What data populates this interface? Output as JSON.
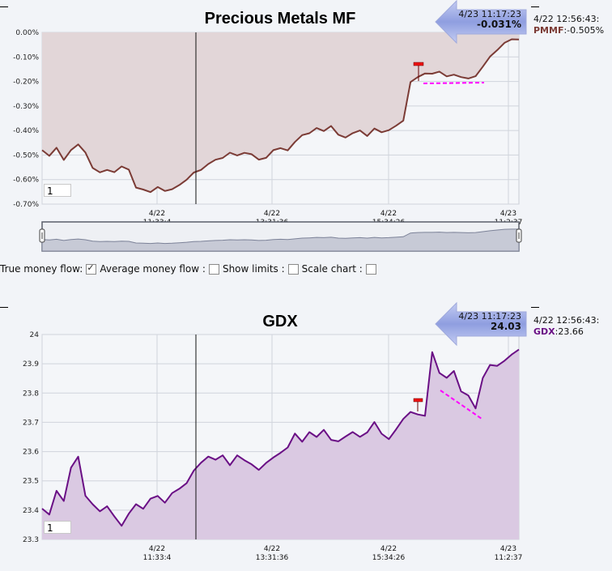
{
  "chart_data": [
    {
      "type": "area",
      "title": "Precious Metals MF",
      "ylim": [
        -0.7,
        0.0
      ],
      "y_ticks": [
        "0.00%",
        "-0.10%",
        "-0.20%",
        "-0.30%",
        "-0.40%",
        "-0.50%",
        "-0.60%",
        "-0.70%"
      ],
      "x_ticks": [
        {
          "date": "4/22",
          "time": "11:33:4"
        },
        {
          "date": "4/22",
          "time": "13:31:36"
        },
        {
          "date": "4/22",
          "time": "15:34:26"
        },
        {
          "date": "4/23",
          "time": "11:2:37"
        }
      ],
      "series": [
        {
          "line_color": "#7b3b35",
          "fill_color": "#e2d6d8",
          "values": [
            -0.48,
            -0.5,
            -0.47,
            -0.52,
            -0.48,
            -0.46,
            -0.49,
            -0.55,
            -0.57,
            -0.56,
            -0.57,
            -0.55,
            -0.56,
            -0.63,
            -0.64,
            -0.65,
            -0.63,
            -0.65,
            -0.64,
            -0.62,
            -0.6,
            -0.57,
            -0.56,
            -0.54,
            -0.52,
            -0.51,
            -0.49,
            -0.5,
            -0.49,
            -0.5,
            -0.52,
            -0.51,
            -0.48,
            -0.47,
            -0.48,
            -0.45,
            -0.42,
            -0.41,
            -0.39,
            -0.4,
            -0.38,
            -0.42,
            -0.43,
            -0.41,
            -0.4,
            -0.42,
            -0.39,
            -0.41,
            -0.4,
            -0.38,
            -0.36,
            -0.2,
            -0.18,
            -0.17,
            -0.17,
            -0.16,
            -0.18,
            -0.17,
            -0.18,
            -0.19,
            -0.18,
            -0.14,
            -0.1,
            -0.07,
            -0.04,
            -0.03,
            -0.03
          ]
        }
      ]
    },
    {
      "type": "area",
      "title": "GDX",
      "ylim": [
        23.3,
        24.1
      ],
      "y_ticks": [
        "24",
        "23.9",
        "23.8",
        "23.7",
        "23.6",
        "23.5",
        "23.4",
        "23.3"
      ],
      "x_ticks": [
        {
          "date": "4/22",
          "time": "11:33:4"
        },
        {
          "date": "4/22",
          "time": "13:31:36"
        },
        {
          "date": "4/22",
          "time": "15:34:26"
        },
        {
          "date": "4/23",
          "time": "11:2:37"
        }
      ],
      "series": [
        {
          "line_color": "#6a0f85",
          "fill_color": "#dac9e2",
          "values": [
            23.42,
            23.4,
            23.49,
            23.45,
            23.58,
            23.62,
            23.47,
            23.44,
            23.41,
            23.43,
            23.39,
            23.35,
            23.4,
            23.44,
            23.42,
            23.46,
            23.47,
            23.44,
            23.48,
            23.5,
            23.52,
            23.57,
            23.6,
            23.62,
            23.61,
            23.63,
            23.59,
            23.63,
            23.61,
            23.59,
            23.57,
            23.6,
            23.62,
            23.64,
            23.66,
            23.71,
            23.68,
            23.72,
            23.7,
            23.73,
            23.69,
            23.68,
            23.7,
            23.72,
            23.7,
            23.72,
            23.76,
            23.71,
            23.69,
            23.73,
            23.77,
            23.8,
            23.79,
            23.78,
            24.03,
            23.95,
            23.93,
            23.96,
            23.88,
            23.86,
            23.81,
            23.93,
            23.98,
            23.98,
            24.0,
            24.02,
            24.04
          ]
        }
      ]
    }
  ],
  "charts": [
    {
      "title": "Precious Metals MF",
      "period_value": "1",
      "arrow_time": "4/23 11:17:23",
      "arrow_value": "-0.031%",
      "side_time": "4/22 12:56:43:",
      "side_symbol": "PMMF",
      "side_value": ":-0.505%",
      "color_symbol": "#7b3b35"
    },
    {
      "title": "GDX",
      "period_value": "1",
      "arrow_time": "4/23 11:17:23",
      "arrow_value": "24.03",
      "side_time": "4/22 12:56:43:",
      "side_symbol": "GDX",
      "side_value": ":23.66",
      "color_symbol": "#6a0f85"
    }
  ],
  "controls": {
    "true_money_flow": "True money flow:",
    "average_money_flow": "Average money flow :",
    "show_limits": "Show limits :",
    "scale_chart": "Scale chart :",
    "average_checked": true
  },
  "colors": {
    "grid": "#d0d4dc",
    "plot_bg": "#f4f6f9",
    "trend_line": "#ff00ff",
    "marker": "#ee1111",
    "arrow": "#8f9ee0"
  }
}
